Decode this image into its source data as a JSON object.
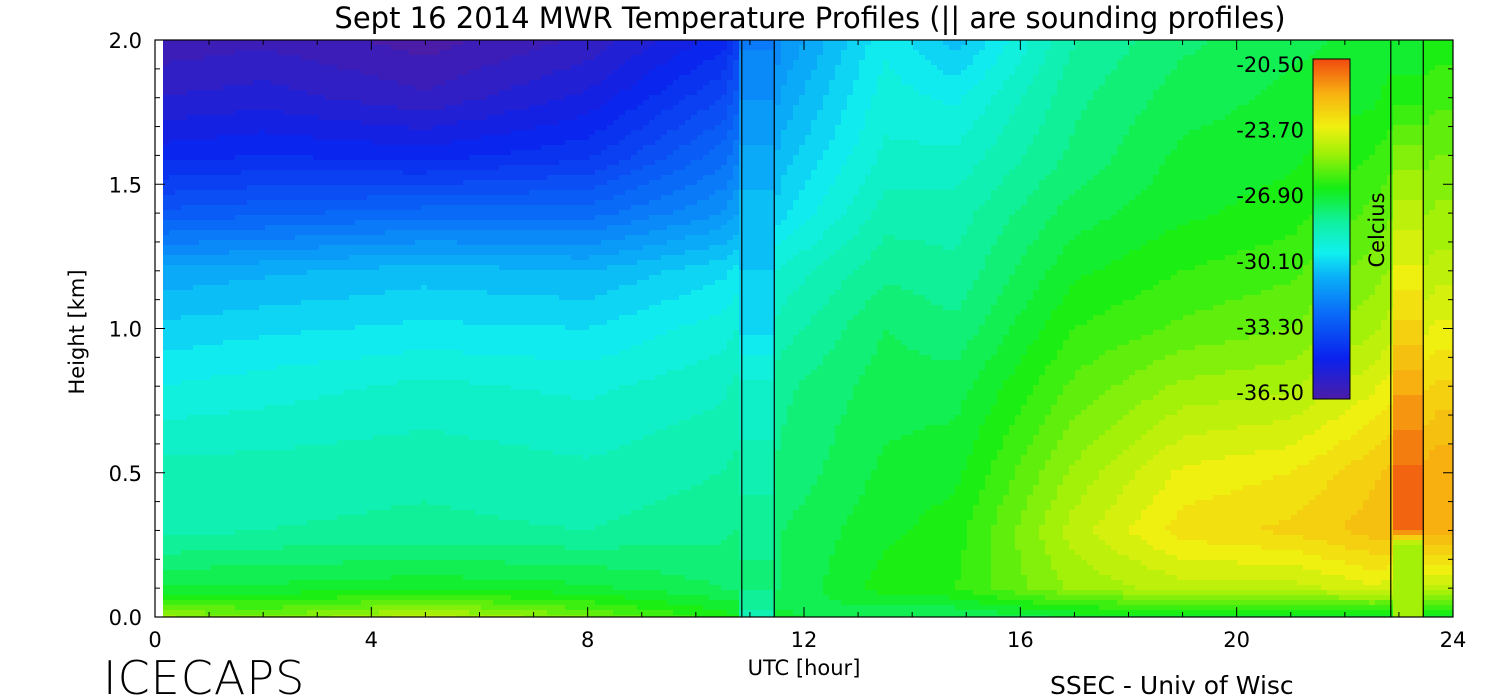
{
  "chart_data": {
    "type": "heatmap",
    "title": "Sept 16 2014 MWR Temperature Profiles (|| are sounding profiles)",
    "xlabel": "UTC [hour]",
    "ylabel": "Height [km]",
    "xlim": [
      0,
      24
    ],
    "ylim": [
      0,
      2.0
    ],
    "x_ticks": [
      "0",
      "4",
      "8",
      "12",
      "16",
      "20",
      "24"
    ],
    "y_ticks": [
      "0.0",
      "0.5",
      "1.0",
      "1.5",
      "2.0"
    ],
    "colorbar": {
      "label": "Celcius",
      "ticks": [
        "-20.50",
        "-23.70",
        "-26.90",
        "-30.10",
        "-33.30",
        "-36.50"
      ],
      "range": [
        -36.5,
        -20.5
      ]
    },
    "sounding_profiles": [
      {
        "x_start": 10.85,
        "x_end": 11.45
      },
      {
        "x_start": 22.85,
        "x_end": 23.45
      }
    ],
    "temperature_profiles": [
      {
        "utc": 0.0,
        "height_km": [
          0.0,
          0.1,
          0.3,
          0.5,
          0.8,
          1.0,
          1.2,
          1.4,
          1.6,
          1.8,
          2.0
        ],
        "celsius": [
          -25.0,
          -27.0,
          -28.5,
          -28.5,
          -29.5,
          -30.2,
          -31.0,
          -33.0,
          -34.5,
          -35.5,
          -36.2
        ]
      },
      {
        "utc": 2.0,
        "height_km": [
          0.0,
          0.1,
          0.3,
          0.5,
          0.8,
          1.0,
          1.2,
          1.4,
          1.6,
          1.8,
          2.0
        ],
        "celsius": [
          -25.5,
          -27.0,
          -28.3,
          -28.5,
          -29.3,
          -30.0,
          -30.8,
          -32.8,
          -34.3,
          -35.3,
          -36.0
        ]
      },
      {
        "utc": 5.0,
        "height_km": [
          0.0,
          0.1,
          0.3,
          0.5,
          0.8,
          1.0,
          1.2,
          1.4,
          1.6,
          1.8,
          2.0
        ],
        "celsius": [
          -24.5,
          -26.8,
          -28.2,
          -28.4,
          -29.0,
          -29.8,
          -30.5,
          -32.5,
          -34.5,
          -35.8,
          -36.5
        ]
      },
      {
        "utc": 8.0,
        "height_km": [
          0.0,
          0.1,
          0.3,
          0.5,
          0.8,
          1.0,
          1.2,
          1.4,
          1.6,
          1.8,
          2.0
        ],
        "celsius": [
          -25.5,
          -27.0,
          -28.3,
          -28.6,
          -29.2,
          -29.9,
          -30.7,
          -32.5,
          -34.0,
          -35.0,
          -35.8
        ]
      },
      {
        "utc": 10.5,
        "height_km": [
          0.0,
          0.1,
          0.3,
          0.5,
          0.8,
          1.0,
          1.2,
          1.4,
          1.6,
          1.8,
          2.0
        ],
        "celsius": [
          -26.5,
          -27.5,
          -28.0,
          -28.3,
          -28.8,
          -29.3,
          -30.0,
          -31.5,
          -32.5,
          -33.5,
          -34.5
        ]
      },
      {
        "utc": 11.15,
        "height_km": [
          0.0,
          0.1,
          0.3,
          0.5,
          0.8,
          1.0,
          1.2,
          1.4,
          1.6,
          1.8,
          2.0
        ],
        "celsius": [
          -28.5,
          -27.8,
          -28.0,
          -28.5,
          -29.0,
          -30.0,
          -30.3,
          -30.5,
          -31.0,
          -31.5,
          -32.0
        ]
      },
      {
        "utc": 11.6,
        "height_km": [
          0.0,
          0.1,
          0.3,
          0.5,
          0.8,
          1.0,
          1.2,
          1.4,
          1.6,
          1.8,
          2.0
        ],
        "celsius": [
          -27.0,
          -27.5,
          -27.5,
          -27.8,
          -28.0,
          -28.5,
          -29.0,
          -30.0,
          -30.5,
          -31.0,
          -31.5
        ]
      },
      {
        "utc": 13.5,
        "height_km": [
          0.0,
          0.1,
          0.3,
          0.5,
          0.8,
          1.0,
          1.2,
          1.4,
          1.6,
          1.8,
          2.0
        ],
        "celsius": [
          -27.5,
          -26.5,
          -26.8,
          -27.0,
          -27.3,
          -27.5,
          -28.0,
          -28.5,
          -29.0,
          -29.3,
          -29.6
        ]
      },
      {
        "utc": 14.8,
        "height_km": [
          0.0,
          0.1,
          0.3,
          0.5,
          0.8,
          1.0,
          1.2,
          1.4,
          1.6,
          1.8,
          2.0
        ],
        "celsius": [
          -27.5,
          -26.3,
          -26.5,
          -26.8,
          -27.3,
          -27.8,
          -28.2,
          -28.5,
          -29.0,
          -29.6,
          -30.5
        ]
      },
      {
        "utc": 17.0,
        "height_km": [
          0.0,
          0.1,
          0.3,
          0.5,
          0.8,
          1.0,
          1.2,
          1.4,
          1.6,
          1.8,
          2.0
        ],
        "celsius": [
          -27.0,
          -25.0,
          -24.5,
          -25.0,
          -25.8,
          -26.3,
          -26.8,
          -27.3,
          -27.8,
          -28.0,
          -28.3
        ]
      },
      {
        "utc": 19.0,
        "height_km": [
          0.0,
          0.1,
          0.3,
          0.5,
          0.8,
          1.0,
          1.2,
          1.4,
          1.6,
          1.8,
          2.0
        ],
        "celsius": [
          -27.0,
          -24.5,
          -23.3,
          -23.8,
          -25.0,
          -25.8,
          -26.3,
          -26.8,
          -27.0,
          -27.3,
          -27.6
        ]
      },
      {
        "utc": 21.0,
        "height_km": [
          0.0,
          0.1,
          0.3,
          0.5,
          0.8,
          1.0,
          1.2,
          1.4,
          1.6,
          1.8,
          2.0
        ],
        "celsius": [
          -27.0,
          -24.5,
          -23.0,
          -23.5,
          -24.8,
          -25.5,
          -26.0,
          -26.5,
          -26.8,
          -27.0,
          -27.2
        ]
      },
      {
        "utc": 22.5,
        "height_km": [
          0.0,
          0.1,
          0.3,
          0.5,
          0.8,
          1.0,
          1.2,
          1.4,
          1.6,
          1.8,
          2.0
        ],
        "celsius": [
          -27.0,
          -24.0,
          -22.5,
          -22.8,
          -24.0,
          -24.8,
          -25.3,
          -25.8,
          -26.3,
          -26.8,
          -27.0
        ]
      },
      {
        "utc": 23.15,
        "height_km": [
          0.0,
          0.1,
          0.25,
          0.3,
          0.5,
          0.8,
          1.0,
          1.2,
          1.4,
          1.6,
          1.8,
          2.0
        ],
        "celsius": [
          -25.0,
          -25.0,
          -25.0,
          -21.0,
          -21.0,
          -22.0,
          -23.0,
          -23.8,
          -24.5,
          -25.3,
          -26.5,
          -27.0
        ]
      },
      {
        "utc": 23.7,
        "height_km": [
          0.0,
          0.1,
          0.3,
          0.5,
          0.8,
          1.0,
          1.2,
          1.4,
          1.6,
          1.8,
          2.0
        ],
        "celsius": [
          -27.0,
          -24.5,
          -22.0,
          -22.0,
          -23.0,
          -23.8,
          -24.5,
          -25.0,
          -25.5,
          -26.0,
          -26.5
        ]
      }
    ]
  },
  "footer": {
    "left": "ICECAPS",
    "right": "SSEC - Univ of Wisc"
  }
}
